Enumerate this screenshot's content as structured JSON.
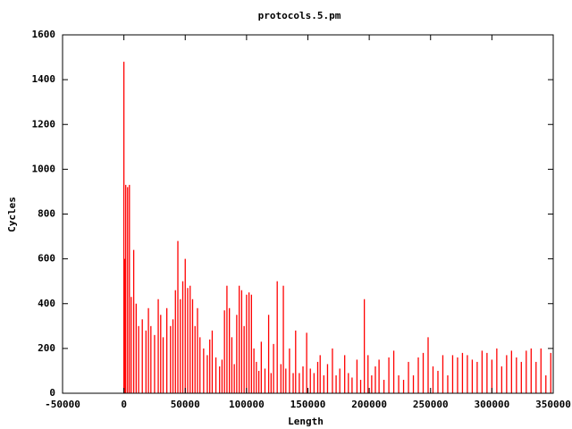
{
  "chart_data": {
    "type": "impulse",
    "title": "protocols.5.pm",
    "x_label": "Length",
    "y_label": "Cycles",
    "color": "#ff0000",
    "x": [
      0,
      500,
      1500,
      3000,
      4500,
      6000,
      8000,
      10000,
      12000,
      15000,
      18000,
      20000,
      22000,
      25000,
      28000,
      30000,
      32000,
      35000,
      38000,
      40000,
      42000,
      44000,
      46000,
      48000,
      50000,
      52000,
      54000,
      56000,
      58000,
      60000,
      62000,
      65000,
      68000,
      70000,
      72000,
      75000,
      78000,
      80000,
      82000,
      84000,
      86000,
      88000,
      90000,
      92000,
      94000,
      96000,
      98000,
      100000,
      102000,
      104000,
      106000,
      108000,
      110000,
      112000,
      115000,
      118000,
      120000,
      122000,
      125000,
      128000,
      130000,
      132000,
      135000,
      138000,
      140000,
      143000,
      146000,
      149000,
      152000,
      155000,
      158000,
      160000,
      163000,
      166000,
      170000,
      173000,
      176000,
      180000,
      183000,
      186000,
      190000,
      193000,
      196000,
      199000,
      202000,
      205000,
      208000,
      212000,
      216000,
      220000,
      224000,
      228000,
      232000,
      236000,
      240000,
      244000,
      248000,
      252000,
      256000,
      260000,
      264000,
      268000,
      272000,
      276000,
      280000,
      284000,
      288000,
      292000,
      296000,
      300000,
      304000,
      308000,
      312000,
      316000,
      320000,
      324000,
      328000,
      332000,
      336000,
      340000,
      344000,
      348000
    ],
    "values": [
      1480,
      600,
      930,
      920,
      930,
      430,
      640,
      400,
      300,
      330,
      280,
      380,
      300,
      260,
      420,
      350,
      250,
      380,
      300,
      330,
      460,
      680,
      420,
      500,
      600,
      470,
      480,
      420,
      300,
      380,
      250,
      200,
      170,
      240,
      280,
      160,
      120,
      150,
      370,
      480,
      380,
      250,
      130,
      350,
      480,
      460,
      300,
      440,
      450,
      440,
      200,
      140,
      100,
      230,
      110,
      350,
      90,
      220,
      500,
      130,
      480,
      110,
      200,
      90,
      280,
      90,
      120,
      270,
      110,
      90,
      140,
      170,
      80,
      130,
      200,
      80,
      110,
      170,
      90,
      70,
      150,
      60,
      420,
      170,
      80,
      120,
      150,
      60,
      160,
      190,
      80,
      60,
      140,
      80,
      160,
      180,
      250,
      120,
      100,
      170,
      80,
      170,
      160,
      180,
      170,
      150,
      140,
      190,
      180,
      150,
      200,
      120,
      170,
      190,
      160,
      140,
      190,
      200,
      140,
      200,
      80,
      180
    ],
    "xlim": [
      -50000,
      350000
    ],
    "ylim": [
      0,
      1600
    ],
    "xticks": [
      -50000,
      0,
      50000,
      100000,
      150000,
      200000,
      250000,
      300000,
      350000
    ],
    "yticks": [
      0,
      200,
      400,
      600,
      800,
      1000,
      1200,
      1400,
      1600
    ]
  }
}
